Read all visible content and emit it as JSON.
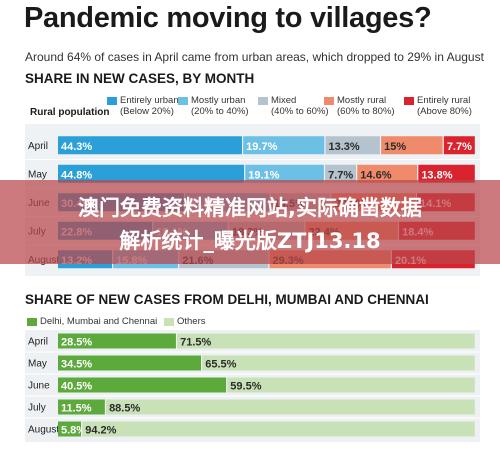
{
  "title": "Pandemic moving to villages?",
  "subtitle": "Around 64% of cases in April came from urban areas, which dropped to 29% in August",
  "banner": {
    "line1": "澳门免费资料精准网站,实际确凿数据",
    "line2": "解析统计_曝光版ZTJ13.18"
  },
  "colors": {
    "entirely_urban": "#2a9fd8",
    "mostly_urban": "#6cc0e6",
    "mixed": "#b5c3cf",
    "mostly_rural": "#ef8a6a",
    "entirely_rural": "#d9232e",
    "metro": "#5daa3c",
    "others": "#c8e1b7"
  },
  "chart_data": [
    {
      "type": "bar",
      "stacked": true,
      "orientation": "horizontal",
      "title": "SHARE IN NEW CASES, BY MONTH",
      "legend_title": "Rural population",
      "legend_position": "top",
      "categories": [
        "April",
        "May",
        "June",
        "July",
        "August"
      ],
      "series": [
        {
          "name": "Entirely urban",
          "sub": "(Below 20%)",
          "color": "#2a9fd8",
          "values": [
            44.3,
            44.8,
            30.4,
            22.8,
            13.2
          ],
          "labels": [
            "44.3%",
            "44.8%",
            "30.4%",
            "22.8%",
            "13.2%"
          ]
        },
        {
          "name": "Mostly urban",
          "sub": "(20% to 40%)",
          "color": "#6cc0e6",
          "values": [
            19.7,
            19.1,
            20.5,
            18.1,
            15.8
          ],
          "labels": [
            "19.7%",
            "19.1%",
            "20.5%",
            "18.1%",
            "15.8%"
          ]
        },
        {
          "name": "Mixed",
          "sub": "(40% to 60%)",
          "color": "#b5c3cf",
          "values": [
            13.3,
            7.7,
            14.5,
            18.3,
            21.6
          ],
          "labels": [
            "13.3%",
            "7.7%",
            "14.5%",
            "18.3%",
            "21.6%"
          ]
        },
        {
          "name": "Mostly rural",
          "sub": "(60% to 80%)",
          "color": "#ef8a6a",
          "values": [
            15,
            14.6,
            20.5,
            22.4,
            29.3
          ],
          "labels": [
            "15%",
            "14.6%",
            "20.5%",
            "22.4%",
            "29.3%"
          ]
        },
        {
          "name": "Entirely rural",
          "sub": "(Above 80%)",
          "color": "#d9232e",
          "values": [
            7.7,
            13.8,
            14.1,
            18.4,
            20.1
          ],
          "labels": [
            "7.7%",
            "13.8%",
            "14.1%",
            "18.4%",
            "20.1%"
          ]
        }
      ],
      "xlim": [
        0,
        100
      ]
    },
    {
      "type": "bar",
      "stacked": true,
      "orientation": "horizontal",
      "title": "SHARE OF NEW CASES FROM DELHI, MUMBAI AND CHENNAI",
      "legend_position": "top-left",
      "categories": [
        "April",
        "May",
        "June",
        "July",
        "August"
      ],
      "series": [
        {
          "name": "Delhi, Mumbai and Chennai",
          "color": "#5daa3c",
          "values": [
            28.5,
            34.5,
            40.5,
            11.5,
            5.8
          ],
          "labels": [
            "28.5%",
            "34.5%",
            "40.5%",
            "11.5%",
            "5.8%"
          ]
        },
        {
          "name": "Others",
          "color": "#c8e1b7",
          "values": [
            71.5,
            65.5,
            59.5,
            88.5,
            94.2
          ],
          "labels": [
            "71.5%",
            "65.5%",
            "59.5%",
            "88.5%",
            "94.2%"
          ]
        }
      ],
      "xlim": [
        0,
        100
      ]
    }
  ]
}
